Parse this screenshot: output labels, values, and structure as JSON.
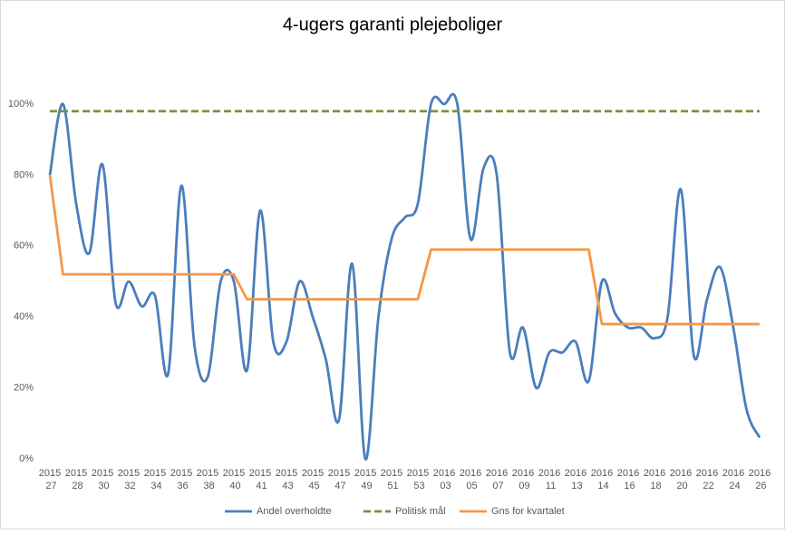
{
  "chart_data": {
    "type": "line",
    "title": "4-ugers garanti plejeboliger",
    "categories": [
      "2015 27",
      null,
      "2015 28",
      null,
      "2015 30",
      null,
      "2015 32",
      null,
      "2015 34",
      null,
      "2015 36",
      null,
      "2015 38",
      null,
      "2015 40",
      null,
      "2015 41",
      null,
      "2015 43",
      null,
      "2015 45",
      null,
      "2015 47",
      null,
      "2015 49",
      null,
      "2015 51",
      null,
      "2015 53",
      null,
      "2016 03",
      null,
      "2016 05",
      null,
      "2016 07",
      null,
      "2016 09",
      null,
      "2016 11",
      null,
      "2016 13",
      null,
      "2016 14",
      null,
      "2016 16",
      null,
      "2016 18",
      null,
      "2016 20",
      null,
      "2016 22",
      null,
      "2016 24",
      null,
      "2016 26"
    ],
    "series": [
      {
        "name": "Andel overholdte",
        "color": "#4a7ebb",
        "smooth": true,
        "values": [
          80,
          100,
          72,
          58,
          83,
          44,
          50,
          43,
          46,
          24,
          77,
          32,
          23,
          50,
          50,
          25,
          70,
          33,
          33,
          50,
          40,
          28,
          11,
          55,
          0,
          40,
          62,
          68,
          72,
          100,
          100,
          100,
          62,
          82,
          80,
          30,
          37,
          20,
          30,
          30,
          33,
          22,
          50,
          41,
          37,
          37,
          34,
          40,
          76,
          29,
          45,
          54,
          37,
          14,
          6
        ]
      },
      {
        "name": "Politisk mål",
        "color": "#77933c",
        "dashed": true,
        "values": [
          98,
          98,
          98,
          98,
          98,
          98,
          98,
          98,
          98,
          98,
          98,
          98,
          98,
          98,
          98,
          98,
          98,
          98,
          98,
          98,
          98,
          98,
          98,
          98,
          98,
          98,
          98,
          98,
          98,
          98,
          98,
          98,
          98,
          98,
          98,
          98,
          98,
          98,
          98,
          98,
          98,
          98,
          98,
          98,
          98,
          98,
          98,
          98,
          98,
          98,
          98,
          98,
          98,
          98,
          98
        ]
      },
      {
        "name": "Gns for kvartalet",
        "color": "#f79646",
        "values": [
          80,
          52,
          52,
          52,
          52,
          52,
          52,
          52,
          52,
          52,
          52,
          52,
          52,
          52,
          52,
          45,
          45,
          45,
          45,
          45,
          45,
          45,
          45,
          45,
          45,
          45,
          45,
          45,
          45,
          59,
          59,
          59,
          59,
          59,
          59,
          59,
          59,
          59,
          59,
          59,
          59,
          59,
          38,
          38,
          38,
          38,
          38,
          38,
          38,
          38,
          38,
          38,
          38,
          38,
          38
        ]
      }
    ],
    "ylim": [
      0,
      100
    ],
    "yticks": [
      {
        "value": 0,
        "label": "0%"
      },
      {
        "value": 20,
        "label": "20%"
      },
      {
        "value": 40,
        "label": "40%"
      },
      {
        "value": 60,
        "label": "60%"
      },
      {
        "value": 80,
        "label": "80%"
      },
      {
        "value": 100,
        "label": "100%"
      }
    ],
    "legend": "bottom"
  }
}
